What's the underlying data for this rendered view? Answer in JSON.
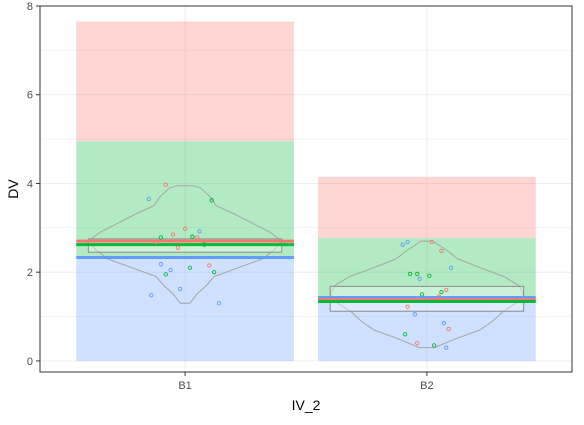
{
  "chart_data": {
    "type": "bar",
    "title": "",
    "xlabel": "IV_2",
    "ylabel": "DV",
    "categories": [
      "B1",
      "B2"
    ],
    "ylim": [
      -0.25,
      8.0
    ],
    "y_ticks": [
      0,
      2,
      4,
      6,
      8
    ],
    "grid": true,
    "legend": "none",
    "series_colors": [
      "#F8766D",
      "#00BA38",
      "#619CFF"
    ],
    "groups": [
      {
        "category": "B1",
        "bands": [
          {
            "lower": 0.0,
            "upper": 2.33,
            "color": "#619CFF"
          },
          {
            "lower": 2.33,
            "upper": 4.95,
            "color": "#00BA38"
          },
          {
            "lower": 4.95,
            "upper": 7.65,
            "color": "#F8766D"
          }
        ],
        "box": {
          "q1": 2.45,
          "median": 2.68,
          "q3": 2.75
        },
        "lines": [
          {
            "value": 2.7,
            "color": "#F8766D"
          },
          {
            "value": 2.62,
            "color": "#00BA38"
          },
          {
            "value": 2.33,
            "color": "#619CFF"
          }
        ],
        "violin": [
          [
            1.3,
            0.05
          ],
          [
            1.5,
            0.12
          ],
          [
            1.7,
            0.22
          ],
          [
            1.9,
            0.3
          ],
          [
            2.1,
            0.55
          ],
          [
            2.3,
            0.8
          ],
          [
            2.5,
            0.92
          ],
          [
            2.7,
            1.0
          ],
          [
            2.9,
            0.88
          ],
          [
            3.1,
            0.7
          ],
          [
            3.3,
            0.52
          ],
          [
            3.5,
            0.32
          ],
          [
            3.7,
            0.26
          ],
          [
            3.9,
            0.16
          ],
          [
            3.95,
            0.08
          ]
        ],
        "points": [
          {
            "x": -0.08,
            "y": 3.97,
            "color": "#F8766D"
          },
          {
            "x": 0.0,
            "y": 2.98,
            "color": "#F8766D"
          },
          {
            "x": -0.05,
            "y": 2.85,
            "color": "#F8766D"
          },
          {
            "x": 0.05,
            "y": 2.78,
            "color": "#F8766D"
          },
          {
            "x": -0.12,
            "y": 2.68,
            "color": "#F8766D"
          },
          {
            "x": 0.1,
            "y": 2.15,
            "color": "#F8766D"
          },
          {
            "x": -0.03,
            "y": 2.55,
            "color": "#F8766D"
          },
          {
            "x": 0.02,
            "y": 2.1,
            "color": "#00BA38"
          },
          {
            "x": -0.1,
            "y": 2.78,
            "color": "#00BA38"
          },
          {
            "x": 0.08,
            "y": 2.62,
            "color": "#00BA38"
          },
          {
            "x": -0.08,
            "y": 1.95,
            "color": "#00BA38"
          },
          {
            "x": 0.12,
            "y": 2.0,
            "color": "#00BA38"
          },
          {
            "x": 0.03,
            "y": 2.8,
            "color": "#00BA38"
          },
          {
            "x": 0.11,
            "y": 3.62,
            "color": "#00BA38"
          },
          {
            "x": -0.15,
            "y": 3.65,
            "color": "#619CFF"
          },
          {
            "x": -0.1,
            "y": 2.18,
            "color": "#619CFF"
          },
          {
            "x": 0.14,
            "y": 1.3,
            "color": "#619CFF"
          },
          {
            "x": -0.14,
            "y": 1.48,
            "color": "#619CFF"
          },
          {
            "x": -0.02,
            "y": 1.62,
            "color": "#619CFF"
          },
          {
            "x": 0.06,
            "y": 2.92,
            "color": "#619CFF"
          },
          {
            "x": -0.06,
            "y": 2.05,
            "color": "#619CFF"
          }
        ]
      },
      {
        "category": "B2",
        "bands": [
          {
            "lower": 0.0,
            "upper": 1.34,
            "color": "#619CFF"
          },
          {
            "lower": 1.34,
            "upper": 2.77,
            "color": "#00BA38"
          },
          {
            "lower": 2.77,
            "upper": 4.15,
            "color": "#F8766D"
          }
        ],
        "box": {
          "q1": 1.12,
          "median": 1.4,
          "q3": 1.68
        },
        "lines": [
          {
            "value": 1.43,
            "color": "#619CFF"
          },
          {
            "value": 1.38,
            "color": "#F8766D"
          },
          {
            "value": 1.34,
            "color": "#00BA38"
          }
        ],
        "violin": [
          [
            0.3,
            0.08
          ],
          [
            0.5,
            0.3
          ],
          [
            0.7,
            0.55
          ],
          [
            0.9,
            0.68
          ],
          [
            1.1,
            0.78
          ],
          [
            1.3,
            0.92
          ],
          [
            1.5,
            1.0
          ],
          [
            1.7,
            0.95
          ],
          [
            1.9,
            0.8
          ],
          [
            2.1,
            0.55
          ],
          [
            2.3,
            0.32
          ],
          [
            2.5,
            0.2
          ],
          [
            2.7,
            0.06
          ]
        ],
        "points": [
          {
            "x": 0.02,
            "y": 2.68,
            "color": "#F8766D"
          },
          {
            "x": 0.06,
            "y": 2.48,
            "color": "#F8766D"
          },
          {
            "x": 0.08,
            "y": 1.6,
            "color": "#F8766D"
          },
          {
            "x": -0.08,
            "y": 1.22,
            "color": "#F8766D"
          },
          {
            "x": 0.09,
            "y": 0.72,
            "color": "#F8766D"
          },
          {
            "x": -0.04,
            "y": 0.4,
            "color": "#F8766D"
          },
          {
            "x": 0.05,
            "y": 1.45,
            "color": "#F8766D"
          },
          {
            "x": -0.07,
            "y": 1.96,
            "color": "#00BA38"
          },
          {
            "x": -0.04,
            "y": 1.96,
            "color": "#00BA38"
          },
          {
            "x": 0.01,
            "y": 1.92,
            "color": "#00BA38"
          },
          {
            "x": -0.09,
            "y": 0.6,
            "color": "#00BA38"
          },
          {
            "x": 0.03,
            "y": 0.35,
            "color": "#00BA38"
          },
          {
            "x": 0.06,
            "y": 1.55,
            "color": "#00BA38"
          },
          {
            "x": -0.02,
            "y": 1.5,
            "color": "#00BA38"
          },
          {
            "x": -0.08,
            "y": 2.68,
            "color": "#619CFF"
          },
          {
            "x": -0.1,
            "y": 2.62,
            "color": "#619CFF"
          },
          {
            "x": 0.1,
            "y": 2.1,
            "color": "#619CFF"
          },
          {
            "x": -0.05,
            "y": 1.05,
            "color": "#619CFF"
          },
          {
            "x": 0.07,
            "y": 0.85,
            "color": "#619CFF"
          },
          {
            "x": 0.08,
            "y": 0.3,
            "color": "#619CFF"
          },
          {
            "x": -0.03,
            "y": 1.85,
            "color": "#619CFF"
          }
        ]
      }
    ]
  }
}
